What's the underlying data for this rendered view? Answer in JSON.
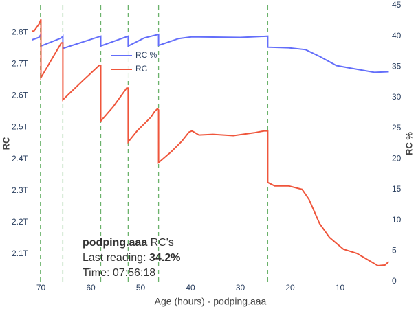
{
  "chart_data": {
    "type": "line",
    "xlabel": "Age (hours) - podping.aaa",
    "ylabel": "RC",
    "y2label": "RC %",
    "xlim": [
      72,
      0
    ],
    "xticks": [
      70,
      60,
      50,
      40,
      30,
      20,
      10
    ],
    "ylim": [
      2.013,
      2.885
    ],
    "yticks": [
      {
        "value": 2.1,
        "label": "2.1T"
      },
      {
        "value": 2.2,
        "label": "2.2T"
      },
      {
        "value": 2.3,
        "label": "2.3T"
      },
      {
        "value": 2.4,
        "label": "2.4T"
      },
      {
        "value": 2.5,
        "label": "2.5T"
      },
      {
        "value": 2.6,
        "label": "2.6T"
      },
      {
        "value": 2.7,
        "label": "2.7T"
      },
      {
        "value": 2.8,
        "label": "2.8T"
      }
    ],
    "y2lim": [
      0,
      45
    ],
    "y2ticks": [
      0,
      5,
      10,
      15,
      20,
      25,
      30,
      35,
      40,
      45
    ],
    "grid": false,
    "vlines": [
      70.1,
      65.6,
      58.0,
      52.5,
      46.4,
      24.5
    ],
    "vline_color": "#6bb26b",
    "series": [
      {
        "name": "RC %",
        "color": "#636efa",
        "axis": "y2",
        "x": [
          71.8,
          70.4,
          70.0,
          70.0,
          65.9,
          65.6,
          65.6,
          58.0,
          58.0,
          52.5,
          52.5,
          49.3,
          46.4,
          46.4,
          42.4,
          39.7,
          30.0,
          24.5,
          24.5,
          20.3,
          16.9,
          14.1,
          10.7,
          6.6,
          3.1,
          0.2
        ],
        "values": [
          39.4,
          39.8,
          40.3,
          38.4,
          39.7,
          40.0,
          38.0,
          40.0,
          38.4,
          40.0,
          38.4,
          39.7,
          40.3,
          38.5,
          39.6,
          39.9,
          39.8,
          40.0,
          38.2,
          38.1,
          37.8,
          36.7,
          35.2,
          34.6,
          34.1,
          34.2
        ]
      },
      {
        "name": "RC",
        "color": "#ef553b",
        "axis": "y",
        "x": [
          71.8,
          71.4,
          70.4,
          70.0,
          70.0,
          65.9,
          65.6,
          65.6,
          64.5,
          61.7,
          58.3,
          58.0,
          58.0,
          55.5,
          52.8,
          52.5,
          52.5,
          50.7,
          49.3,
          47.9,
          47.2,
          46.6,
          46.4,
          46.4,
          43.8,
          41.7,
          40.3,
          39.7,
          38.3,
          35.5,
          31.4,
          27.2,
          25.2,
          24.5,
          24.5,
          23.1,
          20.3,
          17.6,
          16.2,
          14.1,
          12.1,
          9.3,
          6.6,
          3.8,
          2.4,
          1.0,
          0.2
        ],
        "values": [
          2.804,
          2.804,
          2.826,
          2.841,
          2.657,
          2.767,
          2.767,
          2.587,
          2.604,
          2.646,
          2.696,
          2.696,
          2.52,
          2.565,
          2.624,
          2.624,
          2.454,
          2.489,
          2.511,
          2.533,
          2.55,
          2.559,
          2.555,
          2.389,
          2.424,
          2.457,
          2.485,
          2.489,
          2.476,
          2.478,
          2.474,
          2.483,
          2.489,
          2.489,
          2.326,
          2.315,
          2.315,
          2.304,
          2.272,
          2.196,
          2.152,
          2.115,
          2.102,
          2.076,
          2.063,
          2.065,
          2.076
        ]
      }
    ],
    "annotation": [
      [
        {
          "text": "podping.aaa",
          "bold": true
        },
        {
          "text": " RC's",
          "bold": false
        }
      ],
      [
        {
          "text": "Last reading: ",
          "bold": false
        },
        {
          "text": "34.2%",
          "bold": true
        }
      ],
      [
        {
          "text": "Time: 07:56:18",
          "bold": false
        }
      ]
    ]
  }
}
